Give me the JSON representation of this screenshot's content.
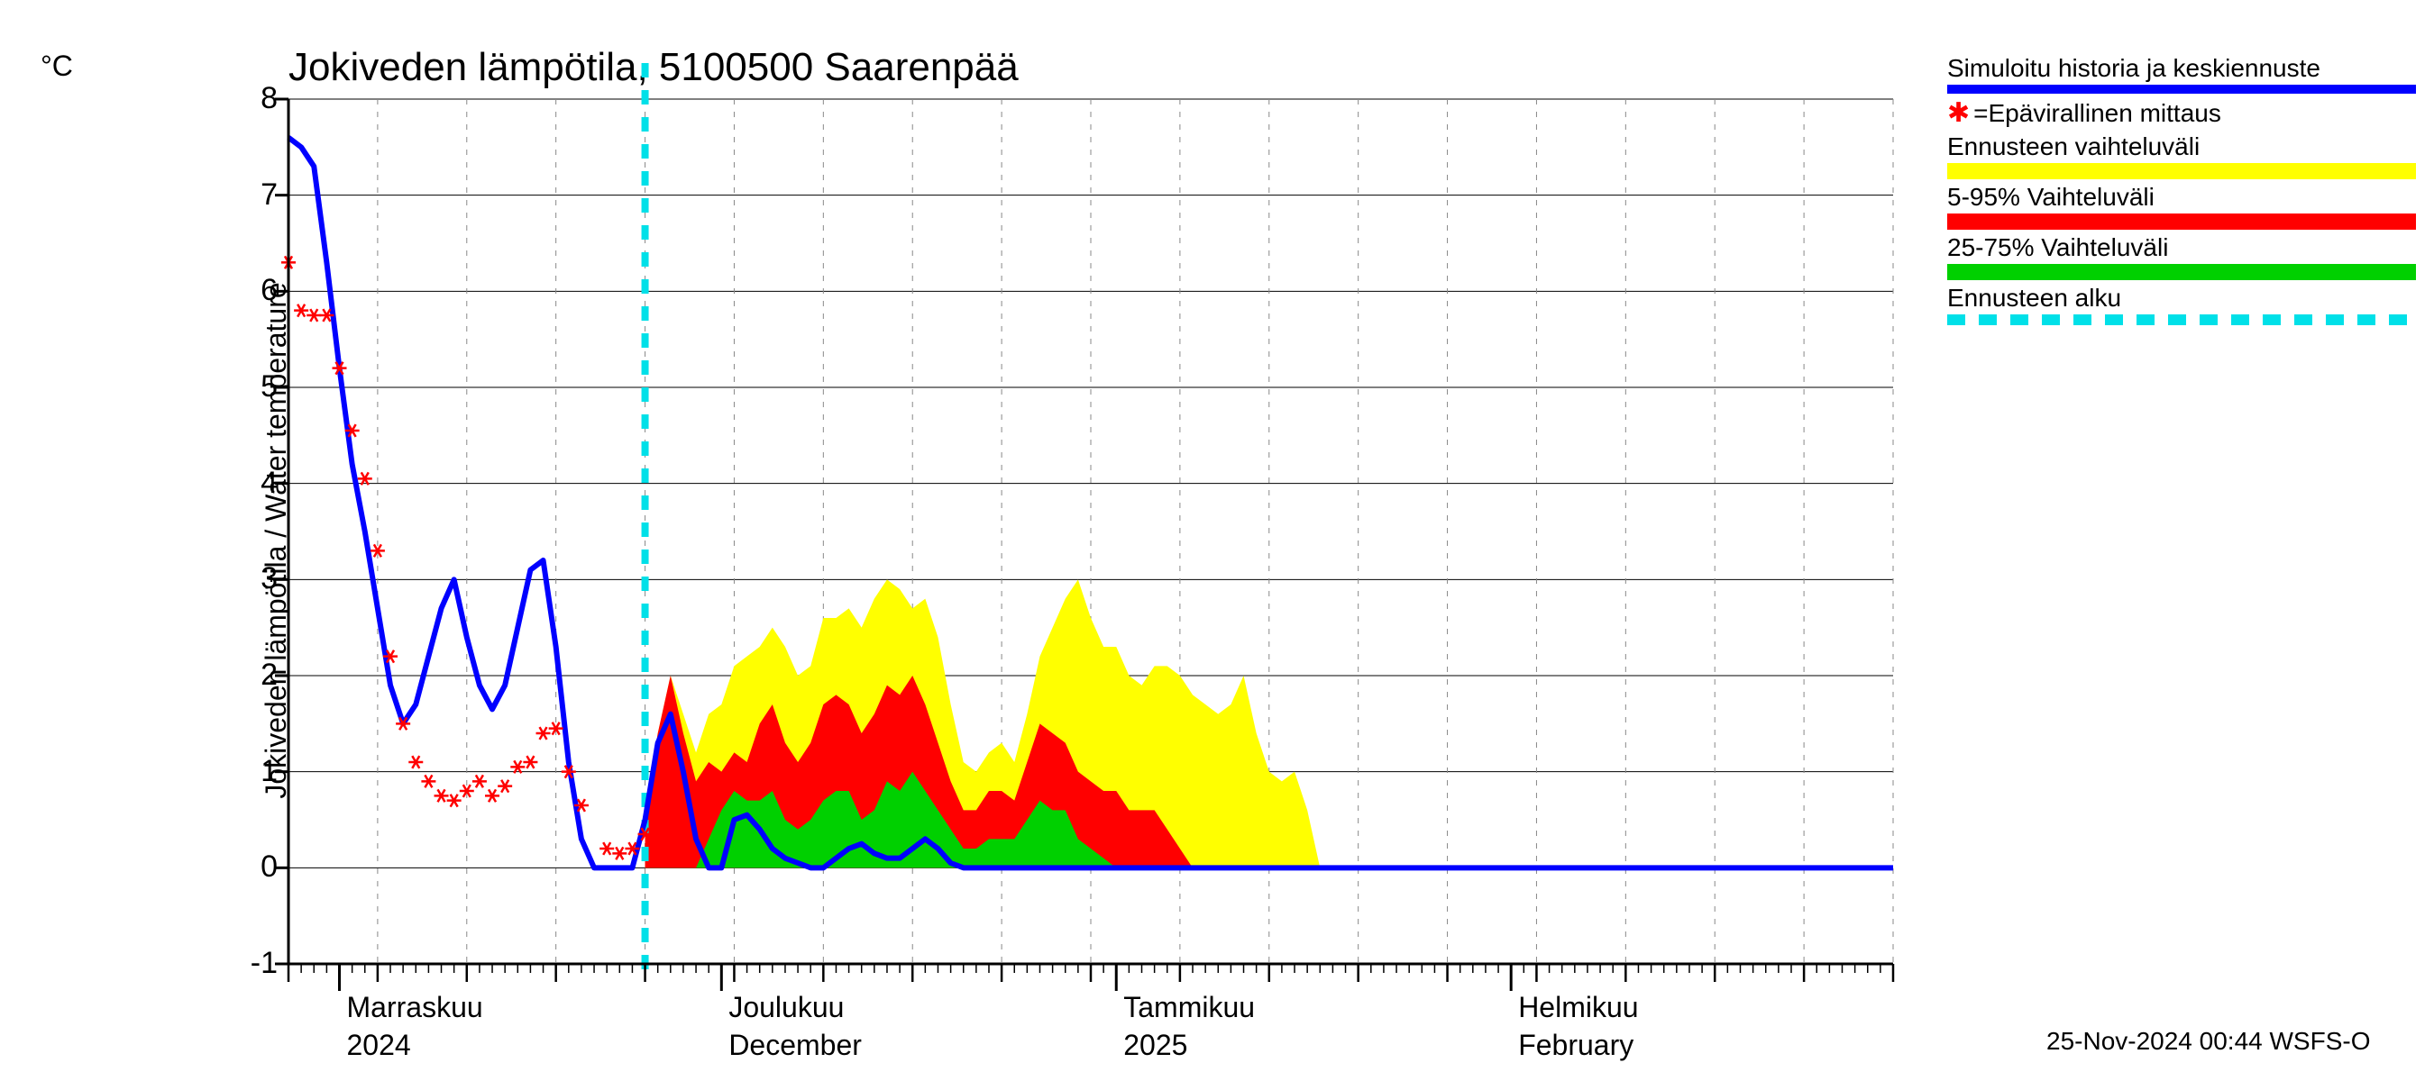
{
  "chart": {
    "type": "line",
    "title": "Jokiveden lämpötila, 5100500 Saarenpää",
    "ylabel": "Jokiveden lämpötila / Water temperature",
    "yunit": "°C",
    "ylim": [
      -1,
      8
    ],
    "yticks": [
      -1,
      0,
      1,
      2,
      3,
      4,
      5,
      6,
      7,
      8
    ],
    "x_domain_days": [
      0,
      126
    ],
    "x_major_ticks": [
      {
        "day": 4,
        "label1": "Marraskuu",
        "label2": "2024"
      },
      {
        "day": 34,
        "label1": "Joulukuu",
        "label2": "December"
      },
      {
        "day": 65,
        "label1": "Tammikuu",
        "label2": "2025"
      },
      {
        "day": 96,
        "label1": "Helmikuu",
        "label2": "February"
      }
    ],
    "x_weekly_minor": [
      0,
      7,
      14,
      21,
      28,
      35,
      42,
      49,
      56,
      63,
      70,
      77,
      84,
      91,
      98,
      105,
      112,
      119,
      126
    ],
    "x_daily_minor_step": 1,
    "forecast_start_day": 28,
    "colors": {
      "axis": "#000000",
      "grid": "#888888",
      "blue_line": "#0000ff",
      "red_marker": "#ff0000",
      "yellow_band": "#ffff00",
      "red_band": "#ff0000",
      "green_band": "#00d000",
      "cyan_dash": "#00e0e8",
      "background": "#ffffff"
    },
    "line_width_blue": 6,
    "marker_size": 8,
    "blue_line": [
      [
        0,
        7.6
      ],
      [
        1,
        7.5
      ],
      [
        2,
        7.3
      ],
      [
        3,
        6.3
      ],
      [
        4,
        5.2
      ],
      [
        5,
        4.2
      ],
      [
        6,
        3.5
      ],
      [
        7,
        2.7
      ],
      [
        8,
        1.9
      ],
      [
        9,
        1.5
      ],
      [
        10,
        1.7
      ],
      [
        11,
        2.2
      ],
      [
        12,
        2.7
      ],
      [
        13,
        3.0
      ],
      [
        14,
        2.4
      ],
      [
        15,
        1.9
      ],
      [
        16,
        1.65
      ],
      [
        17,
        1.9
      ],
      [
        18,
        2.5
      ],
      [
        19,
        3.1
      ],
      [
        20,
        3.2
      ],
      [
        21,
        2.3
      ],
      [
        22,
        1.1
      ],
      [
        23,
        0.3
      ],
      [
        24,
        0.0
      ],
      [
        25,
        0.0
      ],
      [
        26,
        0.0
      ],
      [
        27,
        0.0
      ],
      [
        28,
        0.5
      ],
      [
        29,
        1.3
      ],
      [
        30,
        1.6
      ],
      [
        31,
        1.0
      ],
      [
        32,
        0.3
      ],
      [
        33,
        0.0
      ],
      [
        34,
        0.0
      ],
      [
        35,
        0.5
      ],
      [
        36,
        0.55
      ],
      [
        37,
        0.4
      ],
      [
        38,
        0.2
      ],
      [
        39,
        0.1
      ],
      [
        40,
        0.05
      ],
      [
        41,
        0.0
      ],
      [
        42,
        0.0
      ],
      [
        43,
        0.1
      ],
      [
        44,
        0.2
      ],
      [
        45,
        0.25
      ],
      [
        46,
        0.15
      ],
      [
        47,
        0.1
      ],
      [
        48,
        0.1
      ],
      [
        49,
        0.2
      ],
      [
        50,
        0.3
      ],
      [
        51,
        0.2
      ],
      [
        52,
        0.05
      ],
      [
        53,
        0.0
      ],
      [
        54,
        0.0
      ],
      [
        55,
        0.0
      ],
      [
        56,
        0.0
      ],
      [
        57,
        0.0
      ],
      [
        58,
        0.0
      ],
      [
        59,
        0.0
      ],
      [
        60,
        0.0
      ],
      [
        61,
        0.0
      ],
      [
        62,
        0.0
      ],
      [
        63,
        0.0
      ],
      [
        70,
        0.0
      ],
      [
        80,
        0.0
      ],
      [
        90,
        0.0
      ],
      [
        100,
        0.0
      ],
      [
        110,
        0.0
      ],
      [
        120,
        0.0
      ],
      [
        126,
        0.0
      ]
    ],
    "red_markers": [
      [
        0,
        6.3
      ],
      [
        1,
        5.8
      ],
      [
        2,
        5.75
      ],
      [
        3,
        5.75
      ],
      [
        4,
        5.2
      ],
      [
        5,
        4.55
      ],
      [
        6,
        4.05
      ],
      [
        7,
        3.3
      ],
      [
        8,
        2.2
      ],
      [
        9,
        1.5
      ],
      [
        10,
        1.1
      ],
      [
        11,
        0.9
      ],
      [
        12,
        0.75
      ],
      [
        13,
        0.7
      ],
      [
        14,
        0.8
      ],
      [
        15,
        0.9
      ],
      [
        16,
        0.75
      ],
      [
        17,
        0.85
      ],
      [
        18,
        1.05
      ],
      [
        19,
        1.1
      ],
      [
        20,
        1.4
      ],
      [
        21,
        1.45
      ],
      [
        22,
        1.0
      ],
      [
        23,
        0.65
      ],
      [
        25,
        0.2
      ],
      [
        26,
        0.15
      ],
      [
        27,
        0.2
      ],
      [
        28,
        0.35
      ]
    ],
    "yellow_band": {
      "upper": [
        [
          28,
          0.6
        ],
        [
          29,
          1.4
        ],
        [
          30,
          2.0
        ],
        [
          31,
          1.6
        ],
        [
          32,
          1.2
        ],
        [
          33,
          1.6
        ],
        [
          34,
          1.7
        ],
        [
          35,
          2.1
        ],
        [
          36,
          2.2
        ],
        [
          37,
          2.3
        ],
        [
          38,
          2.5
        ],
        [
          39,
          2.3
        ],
        [
          40,
          2.0
        ],
        [
          41,
          2.1
        ],
        [
          42,
          2.6
        ],
        [
          43,
          2.6
        ],
        [
          44,
          2.7
        ],
        [
          45,
          2.5
        ],
        [
          46,
          2.8
        ],
        [
          47,
          3.0
        ],
        [
          48,
          2.9
        ],
        [
          49,
          2.7
        ],
        [
          50,
          2.8
        ],
        [
          51,
          2.4
        ],
        [
          52,
          1.7
        ],
        [
          53,
          1.1
        ],
        [
          54,
          1.0
        ],
        [
          55,
          1.2
        ],
        [
          56,
          1.3
        ],
        [
          57,
          1.1
        ],
        [
          58,
          1.6
        ],
        [
          59,
          2.2
        ],
        [
          60,
          2.5
        ],
        [
          61,
          2.8
        ],
        [
          62,
          3.0
        ],
        [
          63,
          2.6
        ],
        [
          64,
          2.3
        ],
        [
          65,
          2.3
        ],
        [
          66,
          2.0
        ],
        [
          67,
          1.9
        ],
        [
          68,
          2.1
        ],
        [
          69,
          2.1
        ],
        [
          70,
          2.0
        ],
        [
          71,
          1.8
        ],
        [
          72,
          1.7
        ],
        [
          73,
          1.6
        ],
        [
          74,
          1.7
        ],
        [
          75,
          2.0
        ],
        [
          76,
          1.4
        ],
        [
          77,
          1.0
        ],
        [
          78,
          0.9
        ],
        [
          79,
          1.0
        ],
        [
          80,
          0.6
        ],
        [
          81,
          0.0
        ],
        [
          82,
          0.0
        ],
        [
          83,
          0.0
        ]
      ],
      "lower": [
        [
          28,
          0.0
        ],
        [
          83,
          0.0
        ]
      ]
    },
    "red_band": {
      "upper": [
        [
          28,
          0.6
        ],
        [
          29,
          1.4
        ],
        [
          30,
          2.0
        ],
        [
          31,
          1.4
        ],
        [
          32,
          0.9
        ],
        [
          33,
          1.1
        ],
        [
          34,
          1.0
        ],
        [
          35,
          1.2
        ],
        [
          36,
          1.1
        ],
        [
          37,
          1.5
        ],
        [
          38,
          1.7
        ],
        [
          39,
          1.3
        ],
        [
          40,
          1.1
        ],
        [
          41,
          1.3
        ],
        [
          42,
          1.7
        ],
        [
          43,
          1.8
        ],
        [
          44,
          1.7
        ],
        [
          45,
          1.4
        ],
        [
          46,
          1.6
        ],
        [
          47,
          1.9
        ],
        [
          48,
          1.8
        ],
        [
          49,
          2.0
        ],
        [
          50,
          1.7
        ],
        [
          51,
          1.3
        ],
        [
          52,
          0.9
        ],
        [
          53,
          0.6
        ],
        [
          54,
          0.6
        ],
        [
          55,
          0.8
        ],
        [
          56,
          0.8
        ],
        [
          57,
          0.7
        ],
        [
          58,
          1.1
        ],
        [
          59,
          1.5
        ],
        [
          60,
          1.4
        ],
        [
          61,
          1.3
        ],
        [
          62,
          1.0
        ],
        [
          63,
          0.9
        ],
        [
          64,
          0.8
        ],
        [
          65,
          0.8
        ],
        [
          66,
          0.6
        ],
        [
          67,
          0.6
        ],
        [
          68,
          0.6
        ],
        [
          69,
          0.4
        ],
        [
          70,
          0.2
        ],
        [
          71,
          0.0
        ],
        [
          72,
          0.0
        ]
      ],
      "lower": [
        [
          28,
          0.0
        ],
        [
          72,
          0.0
        ]
      ]
    },
    "green_band": {
      "upper": [
        [
          30,
          0.0
        ],
        [
          31,
          0.0
        ],
        [
          32,
          0.0
        ],
        [
          33,
          0.3
        ],
        [
          34,
          0.6
        ],
        [
          35,
          0.8
        ],
        [
          36,
          0.7
        ],
        [
          37,
          0.7
        ],
        [
          38,
          0.8
        ],
        [
          39,
          0.5
        ],
        [
          40,
          0.4
        ],
        [
          41,
          0.5
        ],
        [
          42,
          0.7
        ],
        [
          43,
          0.8
        ],
        [
          44,
          0.8
        ],
        [
          45,
          0.5
        ],
        [
          46,
          0.6
        ],
        [
          47,
          0.9
        ],
        [
          48,
          0.8
        ],
        [
          49,
          1.0
        ],
        [
          50,
          0.8
        ],
        [
          51,
          0.6
        ],
        [
          52,
          0.4
        ],
        [
          53,
          0.2
        ],
        [
          54,
          0.2
        ],
        [
          55,
          0.3
        ],
        [
          56,
          0.3
        ],
        [
          57,
          0.3
        ],
        [
          58,
          0.5
        ],
        [
          59,
          0.7
        ],
        [
          60,
          0.6
        ],
        [
          61,
          0.6
        ],
        [
          62,
          0.3
        ],
        [
          63,
          0.2
        ],
        [
          64,
          0.1
        ],
        [
          65,
          0.0
        ],
        [
          66,
          0.0
        ]
      ],
      "lower": [
        [
          30,
          0.0
        ],
        [
          66,
          0.0
        ]
      ]
    }
  },
  "legend": {
    "items": [
      {
        "text": "Simuloitu historia ja keskiennuste",
        "swatch_color": "#0000ff",
        "swatch_type": "line"
      },
      {
        "text": "=Epävirallinen mittaus",
        "swatch_color": "#ff0000",
        "swatch_type": "star"
      },
      {
        "text": "Ennusteen vaihteluväli",
        "swatch_color": "#ffff00",
        "swatch_type": "band"
      },
      {
        "text": "5-95% Vaihteluväli",
        "swatch_color": "#ff0000",
        "swatch_type": "band"
      },
      {
        "text": "25-75% Vaihteluväli",
        "swatch_color": "#00d000",
        "swatch_type": "band"
      },
      {
        "text": "Ennusteen alku",
        "swatch_color": "#00e0e8",
        "swatch_type": "dashed"
      }
    ]
  },
  "footer": "25-Nov-2024 00:44 WSFS-O"
}
